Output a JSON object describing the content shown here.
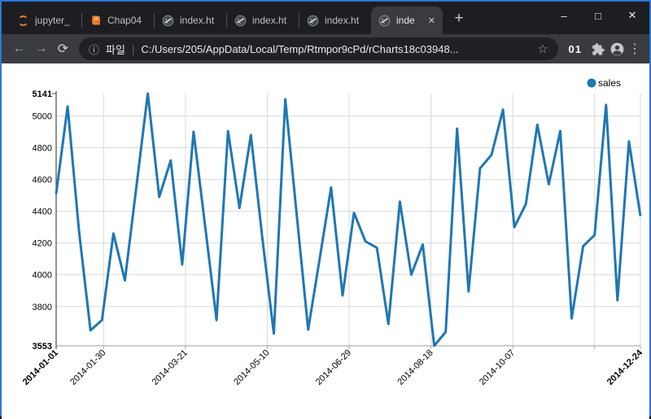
{
  "window": {
    "accent_border_color": "#2e75d4",
    "controls": [
      {
        "name": "minimize",
        "glyph": "–"
      },
      {
        "name": "maximize",
        "glyph": "□"
      },
      {
        "name": "close",
        "glyph": "✕"
      }
    ]
  },
  "tab_bar": {
    "tabs": [
      {
        "label": "jupyter_",
        "icon": "jupyter-icon",
        "active": false
      },
      {
        "label": "Chap04",
        "icon": "book-icon",
        "active": false
      },
      {
        "label": "index.ht",
        "icon": "globe-icon",
        "active": false
      },
      {
        "label": "index.ht",
        "icon": "globe-icon",
        "active": false
      },
      {
        "label": "index.ht",
        "icon": "globe-icon",
        "active": false
      },
      {
        "label": "inde",
        "icon": "globe-icon",
        "active": true,
        "close_glyph": "✕"
      }
    ],
    "new_tab_glyph": "+"
  },
  "toolbar": {
    "back_glyph": "←",
    "forward_glyph": "→",
    "reload_glyph": "⟳",
    "info_glyph": "ⓘ",
    "url_scheme_label": "파일",
    "url_separator": "|",
    "url": "C:/Users/205/AppData/Local/Temp/Rtmpor9cPd/rCharts18c03948...",
    "bookmark_glyph": "☆",
    "extension_badge": "01",
    "menu_glyph": "⋮"
  },
  "chart_data": {
    "type": "line",
    "title": "",
    "xlabel": "",
    "ylabel": "",
    "grid": true,
    "legend": {
      "label": "sales",
      "position": "top-right"
    },
    "xlim": [
      "2014-01-01",
      "2014-12-24"
    ],
    "ylim": [
      3553,
      5141
    ],
    "y_ticks": [
      3553,
      3800,
      4000,
      4200,
      4400,
      4600,
      4800,
      5000,
      5141
    ],
    "y_bold": [
      3553,
      5141
    ],
    "x_ticks": [
      {
        "date": "2014-01-01",
        "label": "2014-01-01",
        "bold": true
      },
      {
        "date": "2014-01-30",
        "label": "2014-01-30",
        "bold": false
      },
      {
        "date": "2014-03-21",
        "label": "2014-03-21",
        "bold": false
      },
      {
        "date": "2014-05-10",
        "label": "2014-05-10",
        "bold": false
      },
      {
        "date": "2014-06-29",
        "label": "2014-06-29",
        "bold": false
      },
      {
        "date": "2014-08-18",
        "label": "2014-08-18",
        "bold": false
      },
      {
        "date": "2014-10-07",
        "label": "2014-10-07",
        "bold": false
      },
      {
        "date": "2014-11-26",
        "label": "",
        "bold": false
      },
      {
        "date": "2014-12-24",
        "label": "2014-12-24",
        "bold": true
      }
    ],
    "series": [
      {
        "name": "sales",
        "color": "#1f77b4",
        "x": [
          "2014-01-01",
          "2014-01-08",
          "2014-01-15",
          "2014-01-22",
          "2014-01-29",
          "2014-02-05",
          "2014-02-12",
          "2014-02-19",
          "2014-02-26",
          "2014-03-05",
          "2014-03-12",
          "2014-03-19",
          "2014-03-26",
          "2014-04-02",
          "2014-04-09",
          "2014-04-16",
          "2014-04-23",
          "2014-04-30",
          "2014-05-07",
          "2014-05-14",
          "2014-05-21",
          "2014-05-28",
          "2014-06-04",
          "2014-06-11",
          "2014-06-18",
          "2014-06-25",
          "2014-07-02",
          "2014-07-09",
          "2014-07-16",
          "2014-07-23",
          "2014-07-30",
          "2014-08-06",
          "2014-08-13",
          "2014-08-20",
          "2014-08-27",
          "2014-09-03",
          "2014-09-10",
          "2014-09-17",
          "2014-09-24",
          "2014-10-01",
          "2014-10-08",
          "2014-10-15",
          "2014-10-22",
          "2014-10-29",
          "2014-11-05",
          "2014-11-12",
          "2014-11-19",
          "2014-11-26",
          "2014-12-03",
          "2014-12-10",
          "2014-12-17",
          "2014-12-24"
        ],
        "values": [
          4510,
          5060,
          4270,
          3650,
          3715,
          4260,
          3965,
          4550,
          5141,
          4490,
          4720,
          4065,
          4900,
          4310,
          3715,
          4905,
          4420,
          4880,
          4230,
          3630,
          5105,
          4380,
          3655,
          4100,
          4550,
          3870,
          4390,
          4210,
          4170,
          3690,
          4460,
          4000,
          4190,
          3553,
          3640,
          4920,
          3895,
          4670,
          4755,
          5040,
          4300,
          4445,
          4945,
          4570,
          4905,
          3725,
          4180,
          4250,
          5070,
          3840,
          4840,
          4370
        ]
      }
    ]
  }
}
